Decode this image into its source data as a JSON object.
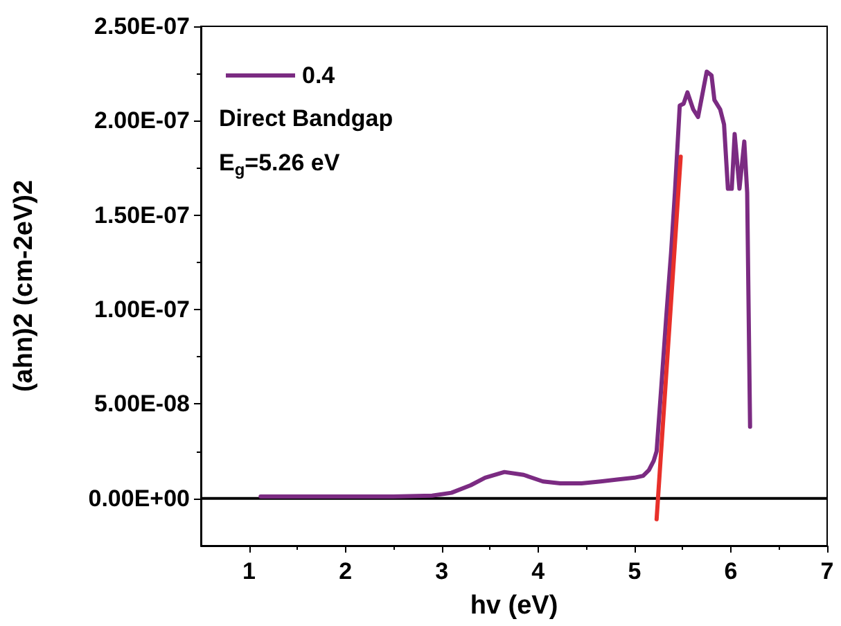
{
  "chart_data": {
    "type": "line",
    "xlabel": "hv (eV)",
    "ylabel": "(ahn)2 (cm-2eV)2",
    "series": [
      {
        "name": "0.4",
        "color": "#7b2b82",
        "x": [
          1.12,
          1.5,
          2.0,
          2.5,
          2.9,
          3.1,
          3.3,
          3.45,
          3.65,
          3.85,
          4.05,
          4.23,
          4.45,
          4.65,
          4.82,
          5.0,
          5.09,
          5.15,
          5.2,
          5.23,
          5.28,
          5.33,
          5.38,
          5.42,
          5.47,
          5.51,
          5.55,
          5.61,
          5.66,
          5.72,
          5.75,
          5.8,
          5.83,
          5.89,
          5.93,
          5.97,
          6.01,
          6.04,
          6.09,
          6.14,
          6.17,
          6.2
        ],
        "values": [
          1e-09,
          1e-09,
          1e-09,
          1e-09,
          1.5e-09,
          3e-09,
          7e-09,
          1.1e-08,
          1.4e-08,
          1.25e-08,
          9e-09,
          8e-09,
          8e-09,
          9e-09,
          1e-08,
          1.1e-08,
          1.2e-08,
          1.5e-08,
          2e-08,
          2.5e-08,
          6e-08,
          9.6e-08,
          1.3e-07,
          1.62e-07,
          2.08e-07,
          2.09e-07,
          2.15e-07,
          2.06e-07,
          2.02e-07,
          2.18e-07,
          2.26e-07,
          2.24e-07,
          2.11e-07,
          2.06e-07,
          1.98e-07,
          1.64e-07,
          1.64e-07,
          1.93e-07,
          1.64e-07,
          1.89e-07,
          1.62e-07,
          3.8e-08
        ]
      },
      {
        "type": "line",
        "color": "#e8302a",
        "x": [
          5.23,
          5.48
        ],
        "values": [
          -1.1e-08,
          1.81e-07
        ]
      }
    ],
    "xlim": [
      0.5,
      7
    ],
    "xticks": [
      1,
      2,
      3,
      4,
      5,
      6,
      7
    ],
    "ylim": [
      -2.5e-08,
      2.5e-07
    ],
    "yticks": [
      {
        "value": 0,
        "label": "0.00E+00"
      },
      {
        "value": 5e-08,
        "label": "5.00E-08"
      },
      {
        "value": 1e-07,
        "label": "1.00E-07"
      },
      {
        "value": 1.5e-07,
        "label": "1.50E-07"
      },
      {
        "value": 2e-07,
        "label": "2.00E-07"
      },
      {
        "value": 2.5e-07,
        "label": "2.50E-07"
      }
    ],
    "ref_lines": [
      {
        "axis": "y",
        "value": 0,
        "color": "#000000"
      }
    ],
    "annotations": [
      "Direct Bandgap",
      "E$_{g}$=5.26 eV"
    ],
    "legend": "top left",
    "grid": false,
    "marker": "none",
    "line_style": "solid"
  }
}
